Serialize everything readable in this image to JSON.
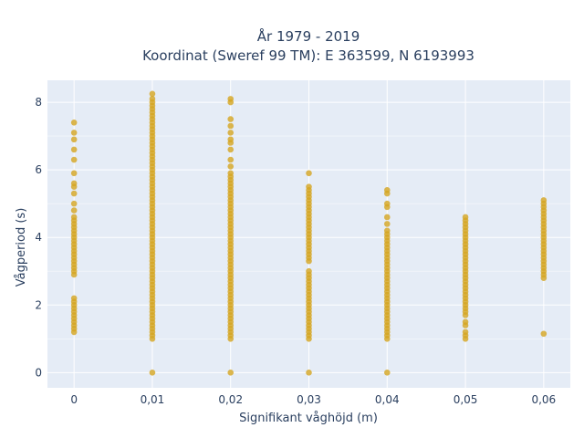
{
  "chart_data": {
    "type": "scatter",
    "title_line1": "År 1979 - 2019",
    "title_line2": "Koordinat (Sweref 99 TM): E 363599, N 6193993",
    "xlabel": "Signifikant våghöjd (m)",
    "ylabel": "Vågperiod (s)",
    "x_ticks": [
      {
        "value": 0,
        "label": "0"
      },
      {
        "value": 0.01,
        "label": "0,01"
      },
      {
        "value": 0.02,
        "label": "0,02"
      },
      {
        "value": 0.03,
        "label": "0,03"
      },
      {
        "value": 0.04,
        "label": "0,04"
      },
      {
        "value": 0.05,
        "label": "0,05"
      },
      {
        "value": 0.06,
        "label": "0,06"
      }
    ],
    "y_ticks": [
      {
        "value": 0,
        "label": "0"
      },
      {
        "value": 2,
        "label": "2"
      },
      {
        "value": 4,
        "label": "4"
      },
      {
        "value": 6,
        "label": "6"
      },
      {
        "value": 8,
        "label": "8"
      }
    ],
    "xlim": [
      -0.0034,
      0.0634
    ],
    "ylim": [
      -0.45,
      8.65
    ],
    "grid": true,
    "colors": {
      "point": "#d4a520",
      "plot_bg": "#e5ecf6",
      "grid": "#ffffff",
      "text": "#2a3f5f"
    },
    "columns": [
      {
        "x": 0,
        "ranges": [
          [
            1.2,
            2.2
          ],
          [
            2.9,
            4.5
          ]
        ],
        "points": [
          4.6,
          4.8,
          5.0,
          5.3,
          5.5,
          5.6,
          5.9,
          6.3,
          6.6,
          6.9,
          7.1,
          7.4
        ]
      },
      {
        "x": 0.01,
        "ranges": [
          [
            1.0,
            8.1
          ]
        ],
        "points": [
          0,
          8.25
        ]
      },
      {
        "x": 0.02,
        "ranges": [
          [
            1.0,
            5.9
          ]
        ],
        "points": [
          0,
          6.1,
          6.3,
          6.6,
          6.8,
          6.9,
          7.1,
          7.3,
          7.5,
          8.0,
          8.1
        ]
      },
      {
        "x": 0.03,
        "ranges": [
          [
            1.0,
            2.9
          ],
          [
            3.3,
            5.5
          ]
        ],
        "points": [
          0,
          3.0,
          5.9
        ]
      },
      {
        "x": 0.04,
        "ranges": [
          [
            1.0,
            4.2
          ]
        ],
        "points": [
          0,
          4.4,
          4.6,
          4.9,
          5.0,
          5.3,
          5.4
        ]
      },
      {
        "x": 0.05,
        "ranges": [
          [
            1.7,
            4.6
          ]
        ],
        "points": [
          1.0,
          1.1,
          1.2,
          1.4,
          1.5
        ]
      },
      {
        "x": 0.06,
        "ranges": [
          [
            2.8,
            5.1
          ]
        ],
        "points": [
          1.15
        ]
      }
    ]
  }
}
